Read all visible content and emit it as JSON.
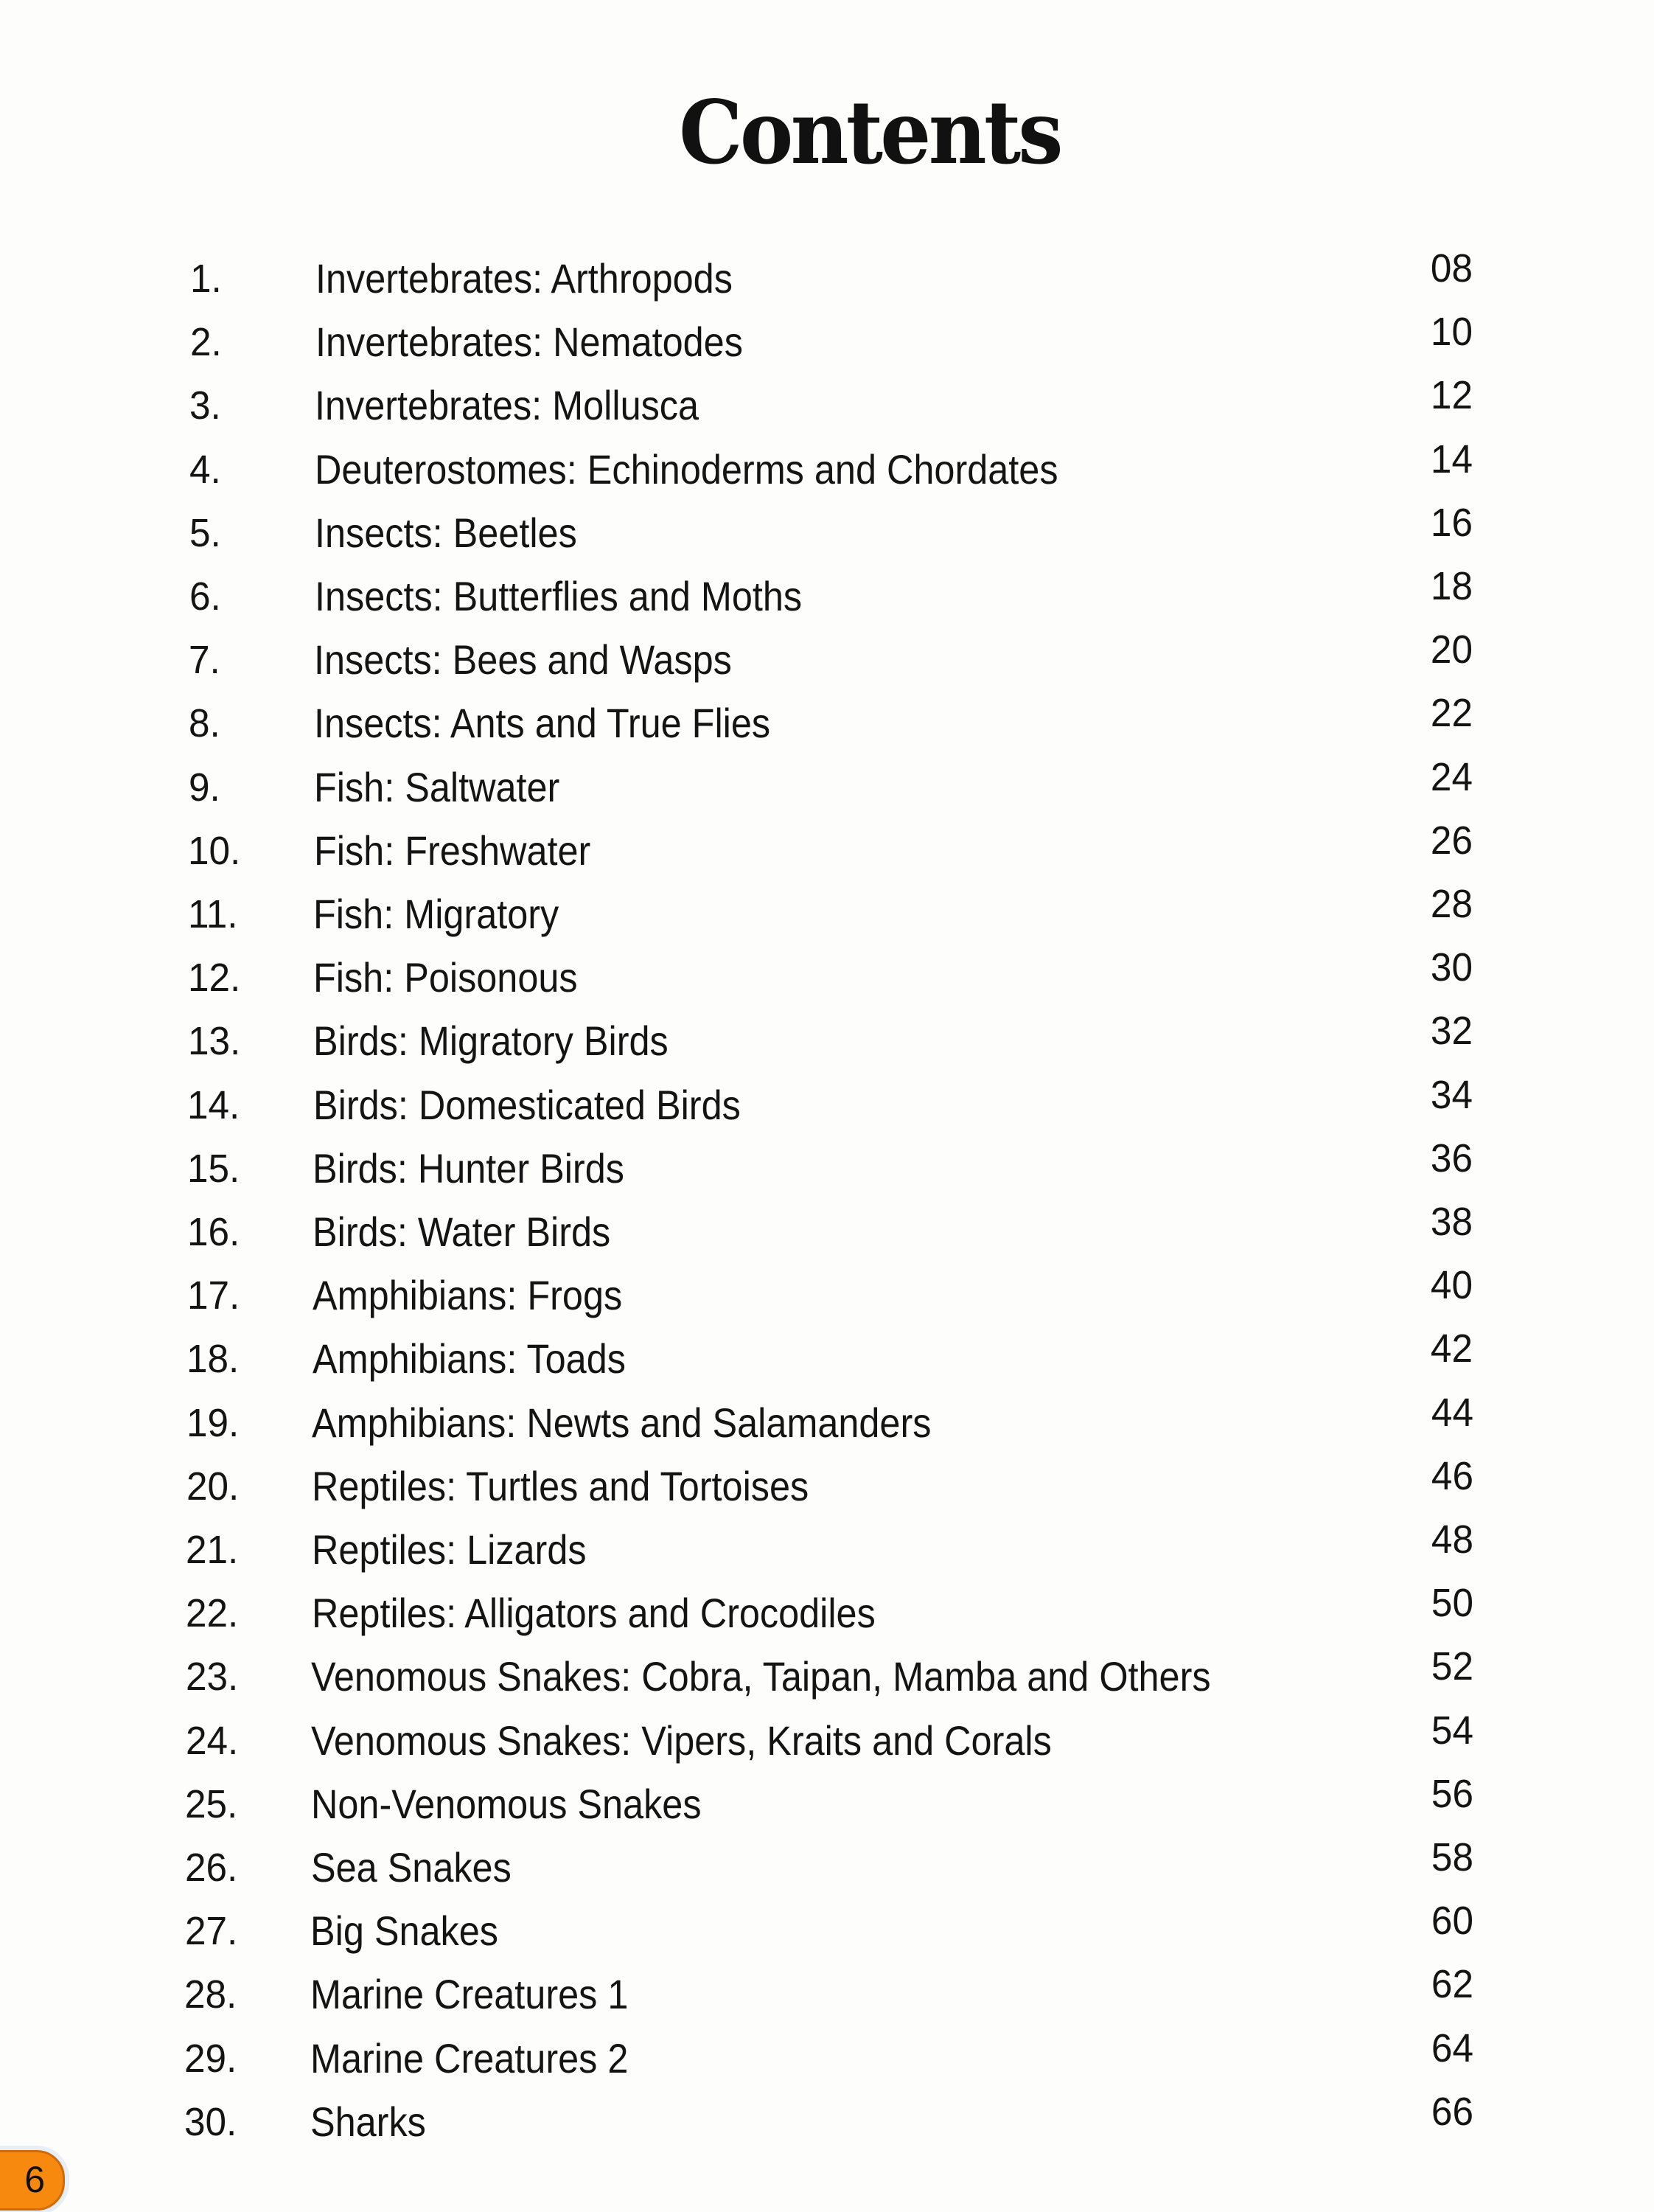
{
  "title": "Contents",
  "page_number": "6",
  "badge_color": "#f7890f",
  "entries": [
    {
      "n": "1.",
      "label": "Invertebrates: Arthropods",
      "page": "08"
    },
    {
      "n": "2.",
      "label": "Invertebrates: Nematodes",
      "page": "10"
    },
    {
      "n": "3.",
      "label": "Invertebrates: Mollusca",
      "page": "12"
    },
    {
      "n": "4.",
      "label": "Deuterostomes: Echinoderms and Chordates",
      "page": "14"
    },
    {
      "n": "5.",
      "label": "Insects: Beetles",
      "page": "16"
    },
    {
      "n": "6.",
      "label": "Insects: Butterflies and Moths",
      "page": "18"
    },
    {
      "n": "7.",
      "label": "Insects: Bees and Wasps",
      "page": "20"
    },
    {
      "n": "8.",
      "label": "Insects: Ants and True Flies",
      "page": "22"
    },
    {
      "n": "9.",
      "label": "Fish: Saltwater",
      "page": "24"
    },
    {
      "n": "10.",
      "label": "Fish: Freshwater",
      "page": "26"
    },
    {
      "n": "11.",
      "label": "Fish: Migratory",
      "page": "28"
    },
    {
      "n": "12.",
      "label": "Fish: Poisonous",
      "page": "30"
    },
    {
      "n": "13.",
      "label": "Birds: Migratory Birds",
      "page": "32"
    },
    {
      "n": "14.",
      "label": "Birds: Domesticated Birds",
      "page": "34"
    },
    {
      "n": "15.",
      "label": "Birds: Hunter Birds",
      "page": "36"
    },
    {
      "n": "16.",
      "label": "Birds: Water Birds",
      "page": "38"
    },
    {
      "n": "17.",
      "label": "Amphibians: Frogs",
      "page": "40"
    },
    {
      "n": "18.",
      "label": "Amphibians: Toads",
      "page": "42"
    },
    {
      "n": "19.",
      "label": "Amphibians: Newts and Salamanders",
      "page": "44"
    },
    {
      "n": "20.",
      "label": "Reptiles: Turtles and Tortoises",
      "page": "46"
    },
    {
      "n": "21.",
      "label": "Reptiles: Lizards",
      "page": "48"
    },
    {
      "n": "22.",
      "label": "Reptiles: Alligators and Crocodiles",
      "page": "50"
    },
    {
      "n": "23.",
      "label": "Venomous Snakes: Cobra, Taipan, Mamba and Others",
      "page": "52"
    },
    {
      "n": "24.",
      "label": "Venomous Snakes: Vipers, Kraits and Corals",
      "page": "54"
    },
    {
      "n": "25.",
      "label": "Non-Venomous Snakes",
      "page": "56"
    },
    {
      "n": "26.",
      "label": "Sea Snakes",
      "page": "58"
    },
    {
      "n": "27.",
      "label": "Big Snakes",
      "page": "60"
    },
    {
      "n": "28.",
      "label": "Marine Creatures 1",
      "page": "62"
    },
    {
      "n": "29.",
      "label": "Marine Creatures 2",
      "page": "64"
    },
    {
      "n": "30.",
      "label": "Sharks",
      "page": "66"
    }
  ]
}
